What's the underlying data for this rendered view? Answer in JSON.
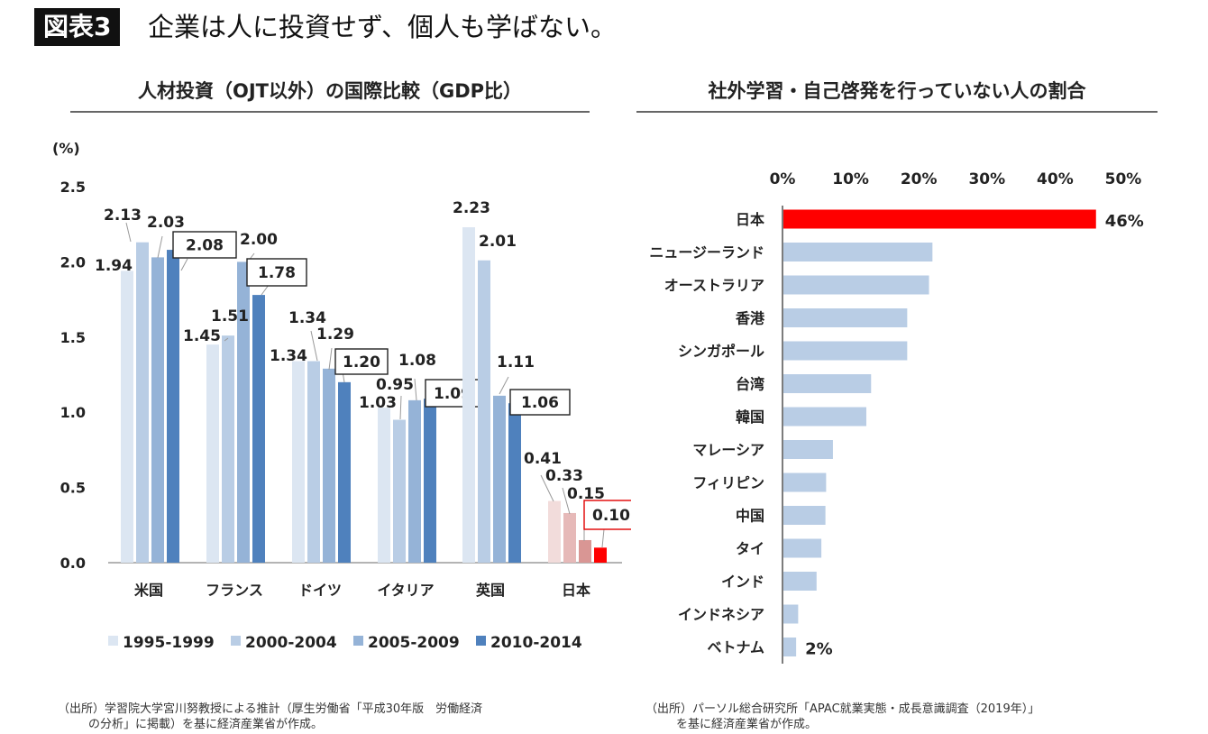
{
  "header": {
    "badge": "図表3",
    "title": "企業は人に投資せず、個人も学ばない。"
  },
  "left_panel": {
    "title": "人材投資（OJT以外）の国際比較（GDP比）",
    "source_line1": "（出所）学習院大学宮川努教授による推計（厚生労働省「平成30年版　労働経済",
    "source_line2": "の分析」に掲載）を基に経済産業省が作成。"
  },
  "right_panel": {
    "title": "社外学習・自己啓発を行っていない人の割合",
    "source_line1": "（出所）パーソル総合研究所「APAC就業実態・成長意識調査（2019年）」",
    "source_line2": "を基に経済産業省が作成。"
  },
  "colors": {
    "series": [
      "#dce6f2",
      "#b9cde5",
      "#95b3d7",
      "#4f81bd"
    ],
    "japan_series": [
      "#f2dcdb",
      "#e6b9b8",
      "#d99694",
      "#ff0000"
    ],
    "highlight_bar": "#ff0000",
    "normal_bar": "#b9cde5"
  },
  "chart_data": [
    {
      "type": "bar",
      "ylabel": "(%)",
      "ylim": [
        0,
        2.5
      ],
      "yticks": [
        "0.0",
        "0.5",
        "1.0",
        "1.5",
        "2.0",
        "2.5"
      ],
      "categories": [
        "米国",
        "フランス",
        "ドイツ",
        "イタリア",
        "英国",
        "日本"
      ],
      "series": [
        {
          "name": "1995-1999",
          "values": [
            1.94,
            1.45,
            1.34,
            1.03,
            2.23,
            0.41
          ]
        },
        {
          "name": "2000-2004",
          "values": [
            2.13,
            1.51,
            1.34,
            0.95,
            2.01,
            0.33
          ]
        },
        {
          "name": "2005-2009",
          "values": [
            2.03,
            2.0,
            1.29,
            1.08,
            1.11,
            0.15
          ]
        },
        {
          "name": "2010-2014",
          "values": [
            2.08,
            1.78,
            1.2,
            1.09,
            1.06,
            0.1
          ]
        }
      ],
      "value_labels": [
        [
          "1.94",
          "2.13",
          "2.03",
          "2.08"
        ],
        [
          "1.45",
          "1.51",
          "2.00",
          "1.78"
        ],
        [
          "1.34",
          "1.34",
          "1.29",
          "1.20"
        ],
        [
          "1.03",
          "0.95",
          "1.08",
          "1.09"
        ],
        [
          "2.23",
          "2.01",
          "1.11",
          "1.06"
        ],
        [
          "0.41",
          "0.33",
          "0.15",
          "0.10"
        ]
      ],
      "legend_position": "bottom",
      "grid": false
    },
    {
      "type": "bar",
      "orientation": "horizontal",
      "xlim": [
        0,
        50
      ],
      "xticks": [
        "0%",
        "10%",
        "20%",
        "30%",
        "40%",
        "50%"
      ],
      "categories": [
        "日本",
        "ニュージーランド",
        "オーストラリア",
        "香港",
        "シンガポール",
        "台湾",
        "韓国",
        "マレーシア",
        "フィリピン",
        "中国",
        "タイ",
        "インド",
        "インドネシア",
        "ベトナム"
      ],
      "values": [
        46,
        22,
        21.5,
        18.3,
        18.3,
        13,
        12.3,
        7.4,
        6.4,
        6.3,
        5.7,
        5,
        2.3,
        2
      ],
      "value_labels": {
        "0": "46%",
        "13": "2%"
      },
      "highlight_index": 0,
      "grid": false
    }
  ]
}
